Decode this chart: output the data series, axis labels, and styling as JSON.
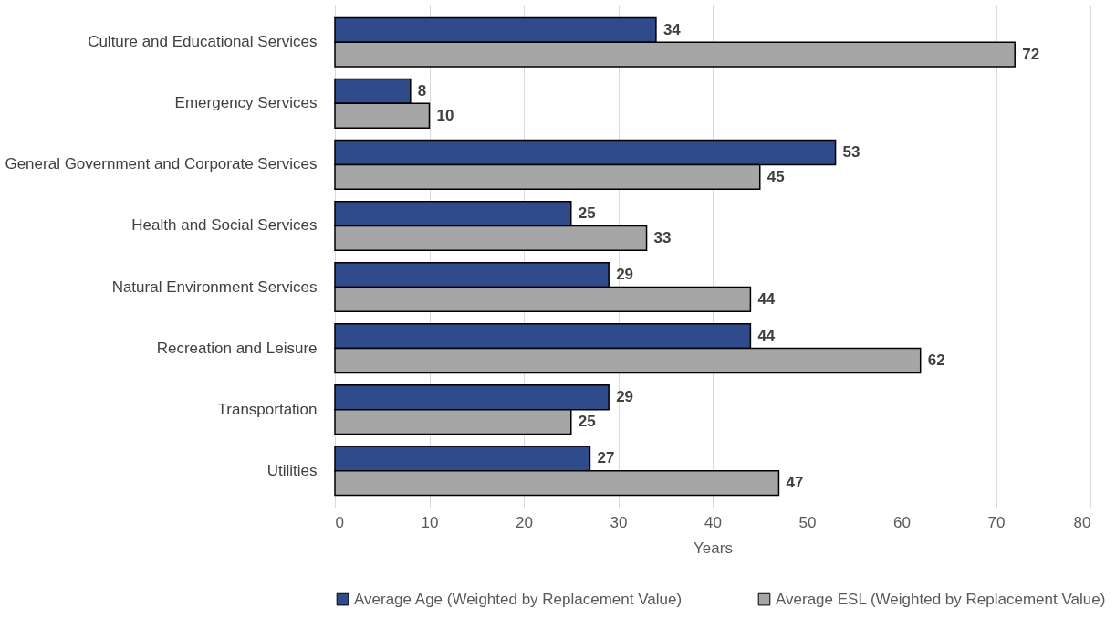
{
  "chart_data": {
    "type": "bar",
    "orientation": "horizontal",
    "xlabel": "Years",
    "categories": [
      "Culture and Educational Services",
      "Emergency Services",
      "General Government and Corporate Services",
      "Health and Social Services",
      "Natural Environment Services",
      "Recreation and Leisure",
      "Transportation",
      "Utilities"
    ],
    "series": [
      {
        "name": "Average Age (Weighted by Replacement Value)",
        "color": "#2f4b8c",
        "values": [
          34,
          8,
          53,
          25,
          29,
          44,
          29,
          27
        ]
      },
      {
        "name": "Average ESL (Weighted by Replacement Value)",
        "color": "#a6a6a6",
        "values": [
          72,
          10,
          45,
          33,
          44,
          62,
          25,
          47
        ]
      }
    ],
    "xlim": [
      0,
      80
    ],
    "xticks": [
      0,
      10,
      20,
      30,
      40,
      50,
      60,
      70,
      80
    ],
    "grid": "x",
    "legend": "bottom",
    "data_labels": true
  }
}
